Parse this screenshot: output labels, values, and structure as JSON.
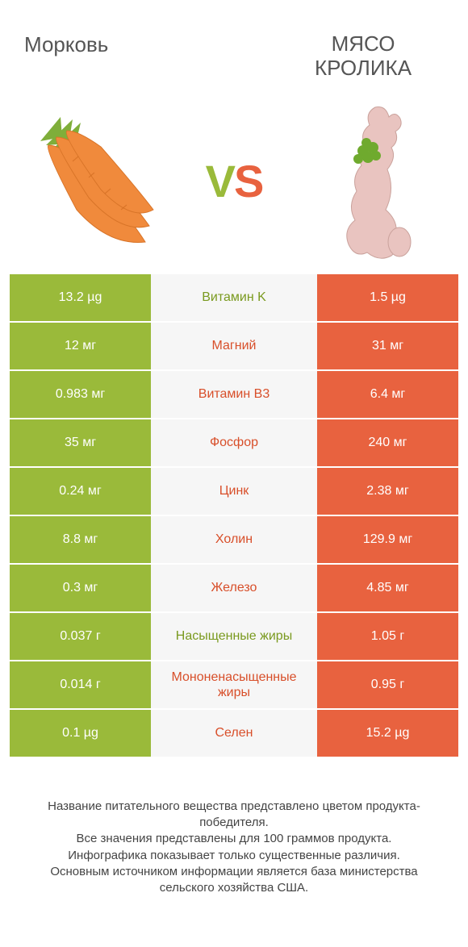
{
  "header": {
    "left_title": "Морковь",
    "right_title": "МЯСО КРОЛИКА"
  },
  "vs_label": {
    "v": "V",
    "s": "S"
  },
  "colors": {
    "left_bar": "#9aba3a",
    "right_bar": "#e8623f",
    "mid_bg": "#f6f6f6",
    "winner_left_text": "#7a9a1f",
    "winner_right_text": "#d84f2a",
    "carrot_body": "#f08a3c",
    "carrot_leaf": "#7fae3a",
    "rabbit_body": "#e9c4c0",
    "rabbit_leaf": "#6faa2e"
  },
  "rows": [
    {
      "left": "13.2 µg",
      "label": "Витамин K",
      "right": "1.5 µg",
      "winner": "left"
    },
    {
      "left": "12 мг",
      "label": "Магний",
      "right": "31 мг",
      "winner": "right"
    },
    {
      "left": "0.983 мг",
      "label": "Витамин B3",
      "right": "6.4 мг",
      "winner": "right"
    },
    {
      "left": "35 мг",
      "label": "Фосфор",
      "right": "240 мг",
      "winner": "right"
    },
    {
      "left": "0.24 мг",
      "label": "Цинк",
      "right": "2.38 мг",
      "winner": "right"
    },
    {
      "left": "8.8 мг",
      "label": "Холин",
      "right": "129.9 мг",
      "winner": "right"
    },
    {
      "left": "0.3 мг",
      "label": "Железо",
      "right": "4.85 мг",
      "winner": "right"
    },
    {
      "left": "0.037 г",
      "label": "Насыщенные жиры",
      "right": "1.05 г",
      "winner": "left"
    },
    {
      "left": "0.014 г",
      "label": "Мононенасыщенные жиры",
      "right": "0.95 г",
      "winner": "right"
    },
    {
      "left": "0.1 µg",
      "label": "Селен",
      "right": "15.2 µg",
      "winner": "right"
    }
  ],
  "footer": {
    "line1": "Название питательного вещества представлено цветом продукта-победителя.",
    "line2": "Все значения представлены для 100 граммов продукта.",
    "line3": "Инфографика показывает только существенные различия.",
    "line4": "Основным источником информации является база министерства сельского хозяйства США."
  }
}
